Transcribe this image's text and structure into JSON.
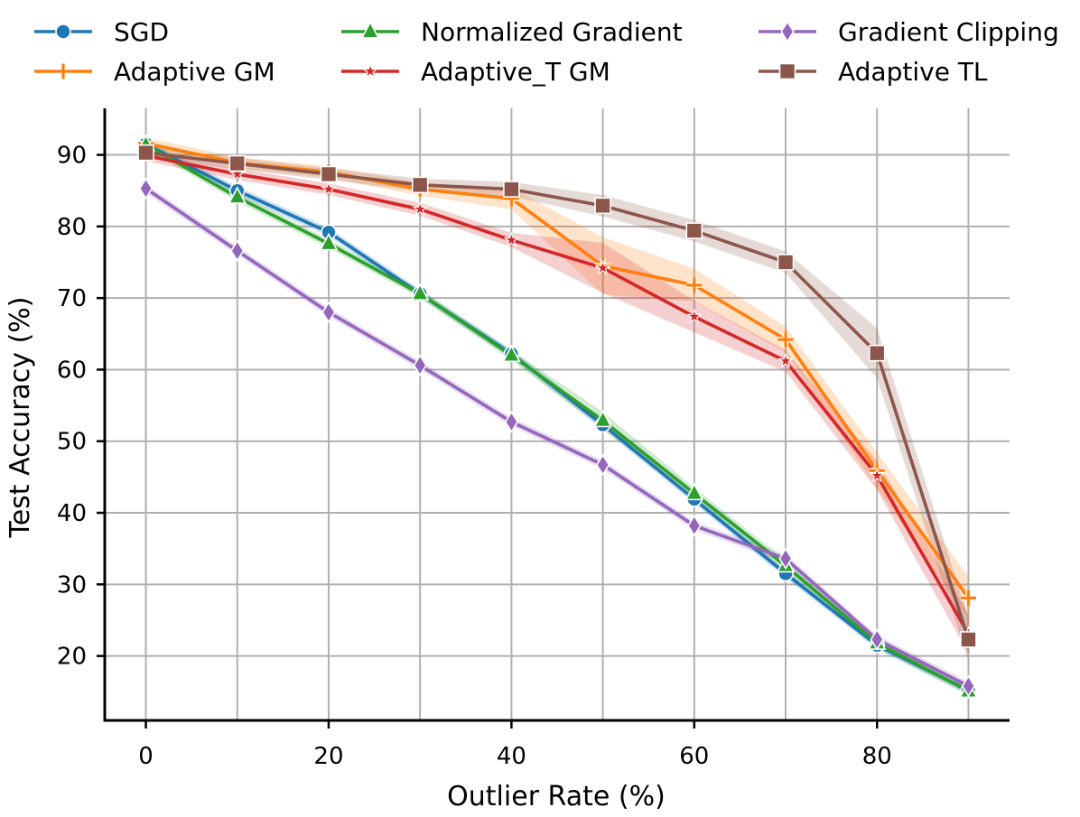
{
  "chart_data": {
    "type": "line",
    "title": "",
    "xlabel": "Outlier Rate (%)",
    "ylabel": "Test Accuracy (%)",
    "xlim": [
      -4.5,
      94.5
    ],
    "ylim": [
      11,
      96.5
    ],
    "xticks": [
      0,
      20,
      40,
      60,
      80
    ],
    "yticks": [
      20,
      30,
      40,
      50,
      60,
      70,
      80,
      90
    ],
    "grid": true,
    "legend_position": "top",
    "x": [
      0,
      10,
      20,
      30,
      40,
      50,
      60,
      70,
      80,
      90
    ],
    "series": [
      {
        "name": "SGD",
        "color": "#1f77b4",
        "marker": "circle",
        "values": [
          91.5,
          85.0,
          79.2,
          70.6,
          62.2,
          52.3,
          41.9,
          31.5,
          21.5,
          15.2
        ],
        "band": 0.6
      },
      {
        "name": "Adaptive GM",
        "color": "#ff7f0e",
        "marker": "plus",
        "values": [
          91.6,
          88.9,
          87.6,
          85.2,
          83.9,
          74.5,
          71.8,
          64.2,
          45.9,
          28.1
        ],
        "band": [
          0.8,
          0.8,
          0.8,
          0.9,
          1.5,
          4.0,
          2.3,
          1.8,
          2.5,
          3.0
        ]
      },
      {
        "name": "Normalized Gradient",
        "color": "#2ca02c",
        "marker": "triangle",
        "values": [
          91.4,
          84.1,
          77.6,
          70.6,
          62.0,
          52.9,
          42.7,
          32.6,
          21.8,
          15.1
        ],
        "band": [
          0.6,
          0.6,
          0.6,
          0.6,
          0.7,
          1.2,
          0.8,
          0.8,
          0.7,
          0.6
        ]
      },
      {
        "name": "Adaptive_T GM",
        "color": "#d62728",
        "marker": "star",
        "values": [
          89.9,
          87.3,
          85.2,
          82.4,
          78.1,
          74.2,
          67.4,
          61.2,
          45.2,
          23.1
        ],
        "band": [
          0.8,
          0.8,
          0.8,
          0.9,
          1.0,
          3.5,
          2.2,
          1.5,
          2.0,
          2.8
        ]
      },
      {
        "name": "Gradient Clipping",
        "color": "#9467bd",
        "marker": "diamond",
        "values": [
          85.3,
          76.6,
          68.0,
          60.6,
          52.7,
          46.7,
          38.2,
          33.6,
          22.3,
          15.8
        ],
        "band": 0.6
      },
      {
        "name": "Adaptive TL",
        "color": "#8c564b",
        "marker": "square",
        "values": [
          90.3,
          88.8,
          87.3,
          85.8,
          85.2,
          82.9,
          79.4,
          75.0,
          62.3,
          22.3
        ],
        "band": [
          0.8,
          0.8,
          0.8,
          0.9,
          1.0,
          1.5,
          1.5,
          1.5,
          3.5,
          3.0
        ]
      }
    ]
  }
}
